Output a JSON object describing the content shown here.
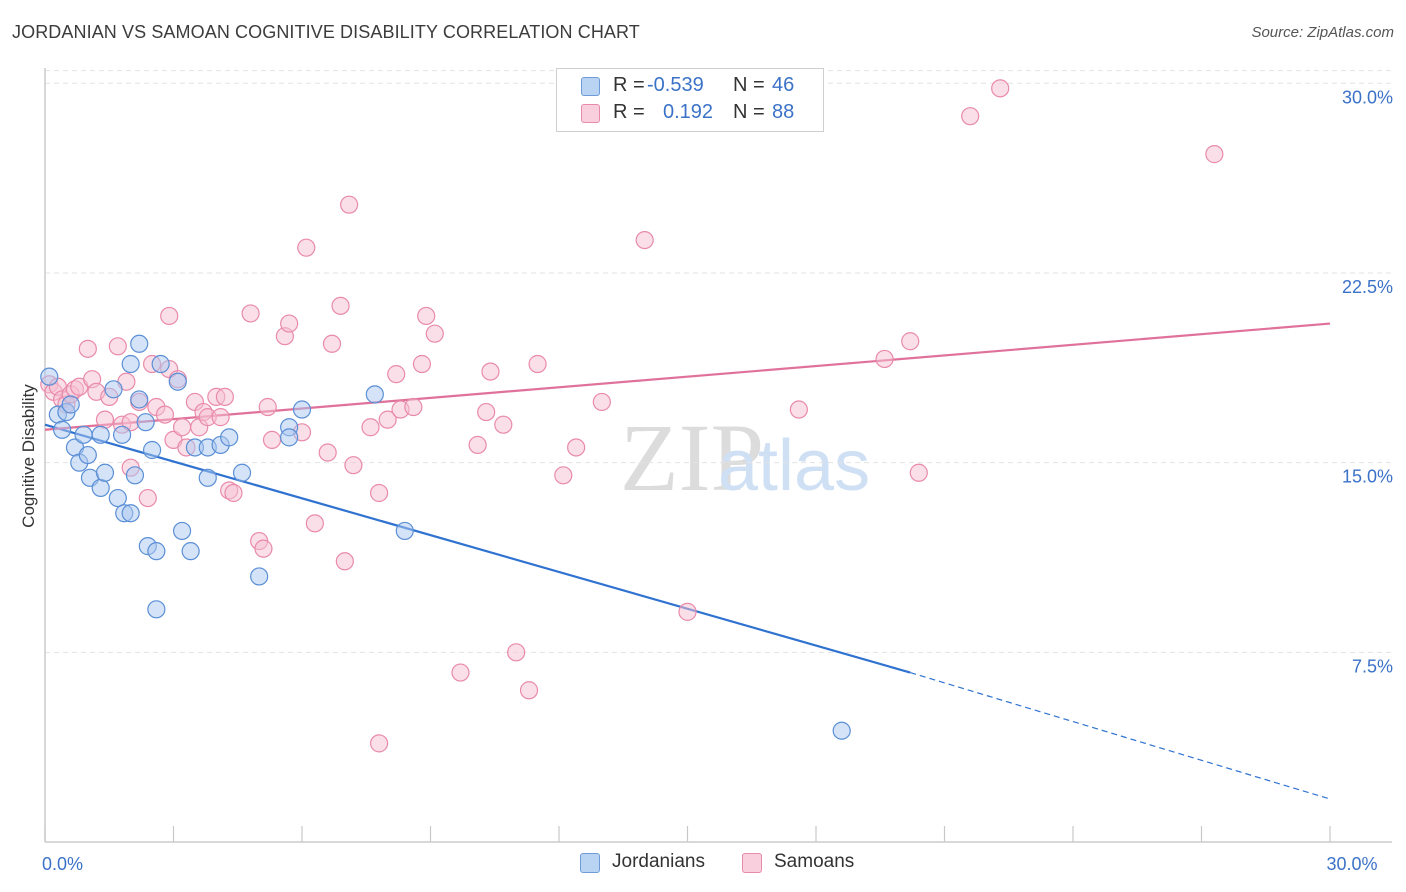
{
  "title": "JORDANIAN VS SAMOAN COGNITIVE DISABILITY CORRELATION CHART",
  "source": "Source: ZipAtlas.com",
  "watermark": {
    "zip": "ZIP",
    "atlas": "atlas"
  },
  "legend": {
    "rows": [
      {
        "r_label": "R =",
        "r_value": "-0.539",
        "n_label": "N =",
        "n_value": "46"
      },
      {
        "r_label": "R =",
        "r_value": "0.192",
        "n_label": "N =",
        "n_value": "88"
      }
    ]
  },
  "bottom_legend": [
    "Jordanians",
    "Samoans"
  ],
  "colors": {
    "blue_fill": "#a9c8f0",
    "blue_stroke": "#5b8fd6",
    "blue_line": "#2f72d0",
    "pink_fill": "#f6c0d2",
    "pink_stroke": "#e98aaa",
    "pink_line": "#e0719a",
    "tick_label": "#3b72c8",
    "grid": "#e3e3e3"
  },
  "chart_data": {
    "type": "scatter",
    "xlabel": "",
    "ylabel": "Cognitive Disability",
    "xlim": [
      0,
      30
    ],
    "ylim": [
      0,
      31
    ],
    "x_tick_labels": [
      {
        "value": 0,
        "label": "0.0%"
      },
      {
        "value": 30,
        "label": "30.0%"
      }
    ],
    "y_tick_labels": [
      {
        "value": 7.5,
        "label": "7.5%"
      },
      {
        "value": 15,
        "label": "15.0%"
      },
      {
        "value": 22.5,
        "label": "22.5%"
      },
      {
        "value": 30,
        "label": "30.0%"
      }
    ],
    "grid": true,
    "series": [
      {
        "name": "Jordanians",
        "color": "blue",
        "points": [
          [
            0.1,
            18.4
          ],
          [
            0.3,
            16.9
          ],
          [
            0.4,
            16.3
          ],
          [
            0.5,
            17.0
          ],
          [
            0.6,
            17.3
          ],
          [
            0.7,
            15.6
          ],
          [
            0.8,
            15.0
          ],
          [
            0.9,
            16.1
          ],
          [
            1.0,
            15.3
          ],
          [
            1.05,
            14.4
          ],
          [
            1.3,
            16.1
          ],
          [
            1.3,
            14.0
          ],
          [
            1.4,
            14.6
          ],
          [
            1.6,
            17.9
          ],
          [
            1.7,
            13.6
          ],
          [
            1.8,
            16.1
          ],
          [
            1.85,
            13.0
          ],
          [
            2.0,
            18.9
          ],
          [
            2.0,
            13.0
          ],
          [
            2.1,
            14.5
          ],
          [
            2.2,
            17.5
          ],
          [
            2.2,
            19.7
          ],
          [
            2.35,
            16.6
          ],
          [
            2.4,
            11.7
          ],
          [
            2.5,
            15.5
          ],
          [
            2.6,
            9.2
          ],
          [
            2.6,
            11.5
          ],
          [
            2.7,
            18.9
          ],
          [
            3.1,
            18.2
          ],
          [
            3.2,
            12.3
          ],
          [
            3.4,
            11.5
          ],
          [
            3.5,
            15.6
          ],
          [
            3.8,
            15.6
          ],
          [
            3.8,
            14.4
          ],
          [
            4.1,
            15.7
          ],
          [
            4.3,
            16.0
          ],
          [
            4.6,
            14.6
          ],
          [
            5.0,
            10.5
          ],
          [
            5.7,
            16.4
          ],
          [
            5.7,
            16.0
          ],
          [
            6.0,
            17.1
          ],
          [
            7.7,
            17.7
          ],
          [
            8.4,
            12.3
          ],
          [
            18.6,
            4.4
          ]
        ],
        "trend": {
          "x": [
            0,
            20.2
          ],
          "y": [
            16.5,
            6.7
          ]
        },
        "trend_extension": {
          "x": [
            20.2,
            30
          ],
          "y": [
            6.7,
            1.7
          ]
        }
      },
      {
        "name": "Samoans",
        "color": "pink",
        "points": [
          [
            0.1,
            18.1
          ],
          [
            0.2,
            17.8
          ],
          [
            0.3,
            18.0
          ],
          [
            0.4,
            17.5
          ],
          [
            0.5,
            17.3
          ],
          [
            0.6,
            17.7
          ],
          [
            0.7,
            17.9
          ],
          [
            0.8,
            18.0
          ],
          [
            1.0,
            19.5
          ],
          [
            1.1,
            18.3
          ],
          [
            1.2,
            17.8
          ],
          [
            1.4,
            16.7
          ],
          [
            1.5,
            17.6
          ],
          [
            1.7,
            19.6
          ],
          [
            1.8,
            16.5
          ],
          [
            1.9,
            18.2
          ],
          [
            2.0,
            16.6
          ],
          [
            2.0,
            14.8
          ],
          [
            2.2,
            17.4
          ],
          [
            2.4,
            13.6
          ],
          [
            2.5,
            18.9
          ],
          [
            2.6,
            17.2
          ],
          [
            2.8,
            16.9
          ],
          [
            2.9,
            20.8
          ],
          [
            2.9,
            18.7
          ],
          [
            3.0,
            15.9
          ],
          [
            3.1,
            18.3
          ],
          [
            3.2,
            16.4
          ],
          [
            3.3,
            15.6
          ],
          [
            3.5,
            17.4
          ],
          [
            3.6,
            16.4
          ],
          [
            3.7,
            17.0
          ],
          [
            3.8,
            16.8
          ],
          [
            4.0,
            17.6
          ],
          [
            4.1,
            16.8
          ],
          [
            4.2,
            17.6
          ],
          [
            4.3,
            13.9
          ],
          [
            4.4,
            13.8
          ],
          [
            4.8,
            20.9
          ],
          [
            5.0,
            11.9
          ],
          [
            5.1,
            11.6
          ],
          [
            5.2,
            17.2
          ],
          [
            5.3,
            15.9
          ],
          [
            5.6,
            20.0
          ],
          [
            5.7,
            20.5
          ],
          [
            6.0,
            16.2
          ],
          [
            6.1,
            23.5
          ],
          [
            6.3,
            12.6
          ],
          [
            6.6,
            15.4
          ],
          [
            6.7,
            19.7
          ],
          [
            6.9,
            21.2
          ],
          [
            7.0,
            11.1
          ],
          [
            7.1,
            25.2
          ],
          [
            7.2,
            14.9
          ],
          [
            7.6,
            16.4
          ],
          [
            7.8,
            13.8
          ],
          [
            7.8,
            3.9
          ],
          [
            8.0,
            16.7
          ],
          [
            8.2,
            18.5
          ],
          [
            8.3,
            17.1
          ],
          [
            8.6,
            17.2
          ],
          [
            8.8,
            18.9
          ],
          [
            8.9,
            20.8
          ],
          [
            9.1,
            20.1
          ],
          [
            9.7,
            6.7
          ],
          [
            10.1,
            15.7
          ],
          [
            10.3,
            17.0
          ],
          [
            10.4,
            18.6
          ],
          [
            10.7,
            16.5
          ],
          [
            11.0,
            7.5
          ],
          [
            11.3,
            6.0
          ],
          [
            11.5,
            18.9
          ],
          [
            12.1,
            14.5
          ],
          [
            12.4,
            15.6
          ],
          [
            13.0,
            17.4
          ],
          [
            14.0,
            23.8
          ],
          [
            15.0,
            9.1
          ],
          [
            17.6,
            17.1
          ],
          [
            19.6,
            19.1
          ],
          [
            20.2,
            19.8
          ],
          [
            20.4,
            14.6
          ],
          [
            21.6,
            28.7
          ],
          [
            22.3,
            29.8
          ],
          [
            27.3,
            27.2
          ]
        ],
        "trend": {
          "x": [
            0,
            30
          ],
          "y": [
            16.3,
            20.5
          ]
        }
      }
    ]
  }
}
